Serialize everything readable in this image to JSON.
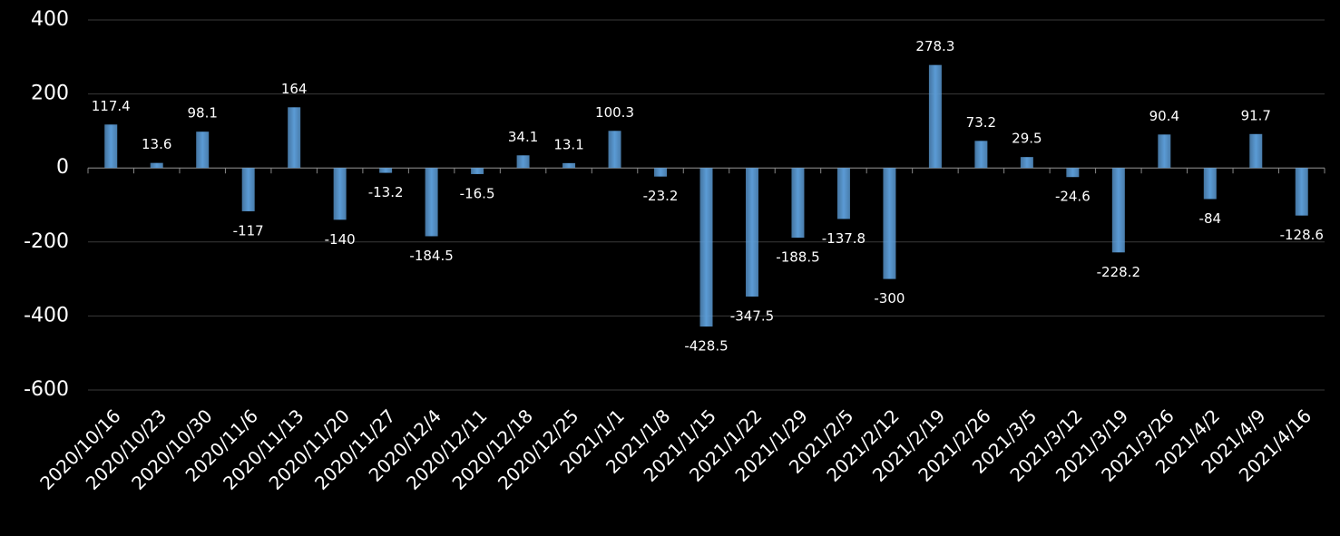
{
  "chart_data": {
    "type": "bar",
    "categories": [
      "2020/10/16",
      "2020/10/23",
      "2020/10/30",
      "2020/11/6",
      "2020/11/13",
      "2020/11/20",
      "2020/11/27",
      "2020/12/4",
      "2020/12/11",
      "2020/12/18",
      "2020/12/25",
      "2021/1/1",
      "2021/1/8",
      "2021/1/15",
      "2021/1/22",
      "2021/1/29",
      "2021/2/5",
      "2021/2/12",
      "2021/2/19",
      "2021/2/26",
      "2021/3/5",
      "2021/3/12",
      "2021/3/19",
      "2021/3/26",
      "2021/4/2",
      "2021/4/9",
      "2021/4/16"
    ],
    "values": [
      117.4,
      13.6,
      98.1,
      -117,
      164,
      -140,
      -13.2,
      -184.5,
      -16.5,
      34.1,
      13.1,
      100.3,
      -23.2,
      -428.5,
      -347.5,
      -188.5,
      -137.8,
      -300,
      278.3,
      73.2,
      29.5,
      -24.6,
      -228.2,
      90.4,
      -84,
      91.7,
      -128.6
    ],
    "color": "#5b9bd5",
    "ylim": [
      -600,
      400
    ],
    "yticks": [
      -600,
      -400,
      -200,
      0,
      200,
      400
    ],
    "grid": true
  }
}
